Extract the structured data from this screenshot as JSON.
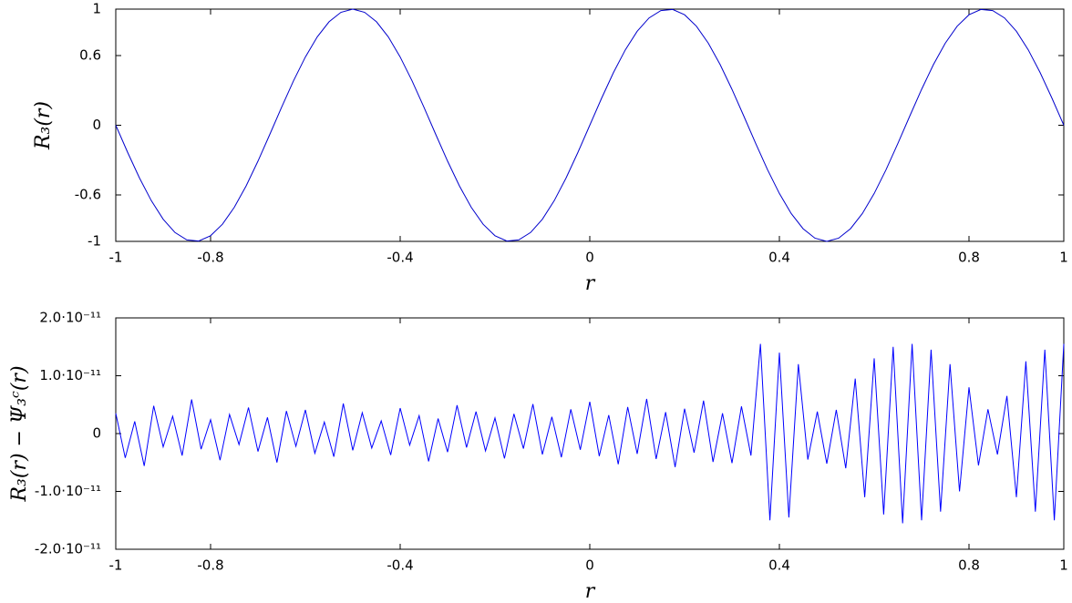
{
  "chart_data": [
    {
      "type": "line",
      "xlabel": "r",
      "ylabel": "R₃(r)",
      "color": "#0000cc",
      "xlim": [
        -1,
        1
      ],
      "ylim": [
        -1,
        1
      ],
      "xticks": [
        -1,
        -0.8,
        -0.4,
        0,
        0.4,
        0.8,
        1
      ],
      "yticks": [
        -1,
        -0.6,
        0,
        0.6,
        1
      ],
      "x": [
        -1,
        -0.975,
        -0.95,
        -0.925,
        -0.9,
        -0.875,
        -0.85,
        -0.825,
        -0.8,
        -0.775,
        -0.75,
        -0.725,
        -0.7,
        -0.675,
        -0.65,
        -0.625,
        -0.6,
        -0.575,
        -0.55,
        -0.525,
        -0.5,
        -0.475,
        -0.45,
        -0.425,
        -0.4,
        -0.375,
        -0.35,
        -0.325,
        -0.3,
        -0.275,
        -0.25,
        -0.225,
        -0.2,
        -0.175,
        -0.15,
        -0.125,
        -0.1,
        -0.075,
        -0.05,
        -0.025,
        0,
        0.025,
        0.05,
        0.075,
        0.1,
        0.125,
        0.15,
        0.175,
        0.2,
        0.225,
        0.25,
        0.275,
        0.3,
        0.325,
        0.35,
        0.375,
        0.4,
        0.425,
        0.45,
        0.475,
        0.5,
        0.525,
        0.55,
        0.575,
        0.6,
        0.625,
        0.65,
        0.675,
        0.7,
        0.725,
        0.75,
        0.775,
        0.8,
        0.825,
        0.85,
        0.875,
        0.9,
        0.925,
        0.95,
        0.975,
        1
      ],
      "values": [
        0,
        -0.2334,
        -0.454,
        -0.6494,
        -0.809,
        -0.9239,
        -0.9877,
        -0.9969,
        -0.9511,
        -0.8526,
        -0.7071,
        -0.5225,
        -0.309,
        -0.0785,
        0.1564,
        0.3827,
        0.5878,
        0.7604,
        0.891,
        0.9724,
        1,
        0.9724,
        0.891,
        0.7604,
        0.5878,
        0.3827,
        0.1564,
        -0.0785,
        -0.309,
        -0.5225,
        -0.7071,
        -0.8526,
        -0.9511,
        -0.9969,
        -0.9877,
        -0.9239,
        -0.809,
        -0.6494,
        -0.454,
        -0.2334,
        0,
        0.2334,
        0.454,
        0.6494,
        0.809,
        0.9239,
        0.9877,
        0.9969,
        0.9511,
        0.8526,
        0.7071,
        0.5225,
        0.309,
        0.0785,
        -0.1564,
        -0.3827,
        -0.5878,
        -0.7604,
        -0.891,
        -0.9724,
        -1,
        -0.9724,
        -0.891,
        -0.7604,
        -0.5878,
        -0.3827,
        -0.1564,
        0.0785,
        0.309,
        0.5225,
        0.7071,
        0.8526,
        0.9511,
        0.9969,
        0.9877,
        0.9239,
        0.809,
        0.6494,
        0.454,
        0.2334,
        0
      ]
    },
    {
      "type": "line",
      "xlabel": "r",
      "ylabel": "R₃(r) − Ψ₃ᶜ(r)",
      "color": "#0000ff",
      "xlim": [
        -1,
        1
      ],
      "ylim": [
        -2e-11,
        2e-11
      ],
      "xticks": [
        -1,
        -0.8,
        -0.4,
        0,
        0.4,
        0.8,
        1
      ],
      "yticks": [
        {
          "value": -2e-11,
          "label": "-2.0·10⁻¹¹"
        },
        {
          "value": -1e-11,
          "label": "-1.0·10⁻¹¹"
        },
        0,
        {
          "value": 1e-11,
          "label": "1.0·10⁻¹¹"
        },
        {
          "value": 2e-11,
          "label": "2.0·10⁻¹¹"
        }
      ],
      "x": [
        -1,
        -0.98,
        -0.96,
        -0.94,
        -0.92,
        -0.9,
        -0.88,
        -0.86,
        -0.84,
        -0.82,
        -0.8,
        -0.78,
        -0.76,
        -0.74,
        -0.72,
        -0.7,
        -0.68,
        -0.66,
        -0.64,
        -0.62,
        -0.6,
        -0.58,
        -0.56,
        -0.54,
        -0.52,
        -0.5,
        -0.48,
        -0.46,
        -0.44,
        -0.42,
        -0.4,
        -0.38,
        -0.36,
        -0.34,
        -0.32,
        -0.3,
        -0.28,
        -0.26,
        -0.24,
        -0.22,
        -0.2,
        -0.18,
        -0.16,
        -0.14,
        -0.12,
        -0.1,
        -0.08,
        -0.06,
        -0.04,
        -0.02,
        0,
        0.02,
        0.04,
        0.06,
        0.08,
        0.1,
        0.12,
        0.14,
        0.16,
        0.18,
        0.2,
        0.22,
        0.24,
        0.26,
        0.28,
        0.3,
        0.32,
        0.34,
        0.36,
        0.38,
        0.4,
        0.42,
        0.44,
        0.46,
        0.48,
        0.5,
        0.52,
        0.54,
        0.56,
        0.58,
        0.6,
        0.62,
        0.64,
        0.66,
        0.68,
        0.7,
        0.72,
        0.74,
        0.76,
        0.78,
        0.8,
        0.82,
        0.84,
        0.86,
        0.88,
        0.9,
        0.92,
        0.94,
        0.96,
        0.98,
        1
      ],
      "values": [
        3.5e-12,
        -4.2e-12,
        2.1e-12,
        -5.6e-12,
        4.8e-12,
        -2.3e-12,
        3e-12,
        -3.8e-12,
        5.9e-12,
        -2.7e-12,
        2.4e-12,
        -4.6e-12,
        3.3e-12,
        -1.9e-12,
        4.5e-12,
        -3.1e-12,
        2.8e-12,
        -5e-12,
        3.9e-12,
        -2.2e-12,
        4.1e-12,
        -3.4e-12,
        2e-12,
        -4e-12,
        5.2e-12,
        -2.9e-12,
        3.6e-12,
        -2.5e-12,
        2.2e-12,
        -3.7e-12,
        4.4e-12,
        -2e-12,
        3.1e-12,
        -4.8e-12,
        2.6e-12,
        -3.2e-12,
        4.9e-12,
        -2.4e-12,
        3.8e-12,
        -3e-12,
        2.7e-12,
        -4.3e-12,
        3.4e-12,
        -2.6e-12,
        5.1e-12,
        -3.6e-12,
        2.9e-12,
        -4.1e-12,
        4.2e-12,
        -2.8e-12,
        5.5e-12,
        -3.9e-12,
        3.2e-12,
        -5.3e-12,
        4.6e-12,
        -3.5e-12,
        6e-12,
        -4.4e-12,
        3.7e-12,
        -5.8e-12,
        4.3e-12,
        -3.3e-12,
        5.7e-12,
        -4.9e-12,
        3.5e-12,
        -5.1e-12,
        4.7e-12,
        -3.8e-12,
        1.55e-11,
        -1.5e-11,
        1.4e-11,
        -1.45e-11,
        1.2e-11,
        -4.5e-12,
        3.8e-12,
        -5.2e-12,
        4.1e-12,
        -6e-12,
        9.5e-12,
        -1.1e-11,
        1.3e-11,
        -1.4e-11,
        1.5e-11,
        -1.55e-11,
        1.55e-11,
        -1.5e-11,
        1.45e-11,
        -1.35e-11,
        1.2e-11,
        -1e-11,
        8e-12,
        -5.5e-12,
        4.2e-12,
        -3.6e-12,
        6.5e-12,
        -1.1e-11,
        1.25e-11,
        -1.35e-11,
        1.45e-11,
        -1.5e-11,
        1.55e-11
      ]
    }
  ]
}
